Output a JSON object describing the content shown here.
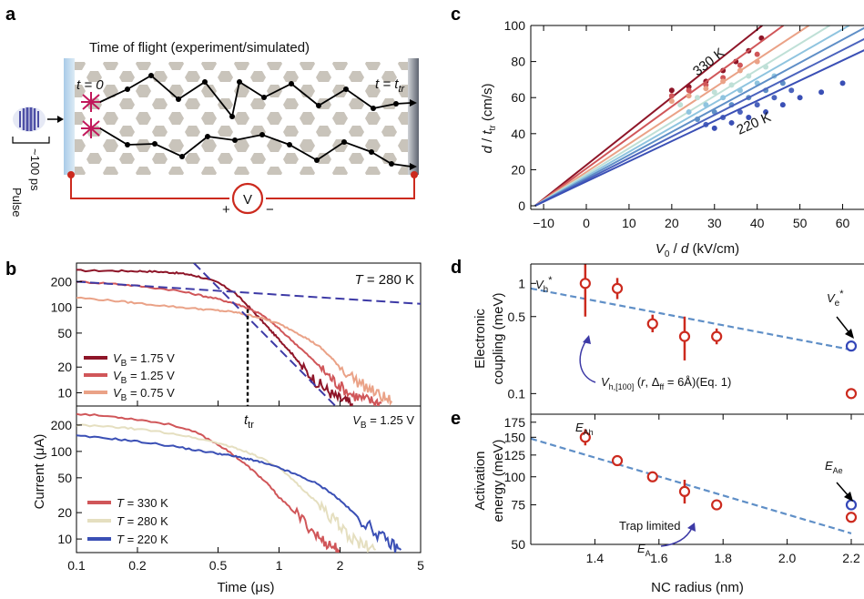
{
  "panels": {
    "a": "a",
    "b": "b",
    "c": "c",
    "d": "d",
    "e": "e"
  },
  "panel_a": {
    "title": "Time of flight (experiment/simulated)",
    "t0": "t = 0",
    "t_tr_t": "t = t",
    "t_tr_sub": "tr",
    "pulse_width": "~100 ps",
    "pulse": "Pulse",
    "voltage": "V",
    "plus": "+",
    "minus": "−"
  },
  "colors": {
    "dark_red": "#8e1528",
    "red": "#d05659",
    "salmon": "#eaa287",
    "cream": "#e5dfc0",
    "blue": "#3a4fb5",
    "dashed_blue": "#3d3aa6",
    "dashed_lightblue": "#5f8fc7",
    "marker_red": "#cc2a1e",
    "marker_blue": "#3447b8"
  },
  "chart_data": [
    {
      "id": "b_top",
      "type": "line",
      "xscale": "log",
      "yscale": "log",
      "xlim": [
        0.1,
        5
      ],
      "ylim": [
        7,
        330
      ],
      "yticks": [
        "10",
        "20",
        "50",
        "100",
        "200"
      ],
      "annotation": "T = 280 K",
      "annotation_italic": "T",
      "annotation_rest": " = 280 K",
      "ttr_label": "t",
      "ttr_sub": "tr",
      "ttr_x": 0.7,
      "series": [
        {
          "name": "VB = 1.75 V",
          "label_v": "V",
          "label_sub": "B",
          "label_rest": " = 1.75 V",
          "color": "#8e1528",
          "x": [
            0.1,
            0.15,
            0.2,
            0.25,
            0.3,
            0.35,
            0.4,
            0.5,
            0.6,
            0.7,
            0.8,
            0.9,
            1.0,
            1.1,
            1.2,
            1.3,
            1.5,
            1.7,
            1.9,
            2.1,
            2.3
          ],
          "y": [
            270,
            268,
            266,
            262,
            255,
            245,
            230,
            195,
            150,
            105,
            75,
            55,
            42,
            33,
            26,
            20,
            14,
            11,
            9,
            8,
            7.5
          ]
        },
        {
          "name": "VB = 1.25 V",
          "label_v": "V",
          "label_sub": "B",
          "label_rest": " = 1.25 V",
          "color": "#d05659",
          "x": [
            0.1,
            0.15,
            0.2,
            0.3,
            0.4,
            0.5,
            0.6,
            0.7,
            0.8,
            0.9,
            1.0,
            1.2,
            1.4,
            1.6,
            1.8,
            2.0,
            2.3,
            2.6,
            2.9,
            3.2
          ],
          "y": [
            200,
            190,
            178,
            160,
            140,
            125,
            112,
            98,
            85,
            70,
            56,
            38,
            27,
            20,
            15,
            12,
            9.5,
            8.5,
            8,
            7.5
          ]
        },
        {
          "name": "VB = 0.75 V",
          "label_v": "V",
          "label_sub": "B",
          "label_rest": " = 0.75 V",
          "color": "#eaa287",
          "x": [
            0.1,
            0.15,
            0.2,
            0.3,
            0.4,
            0.5,
            0.6,
            0.7,
            0.8,
            1.0,
            1.2,
            1.4,
            1.6,
            1.8,
            2.0,
            2.4,
            2.8,
            3.2,
            3.6
          ],
          "y": [
            130,
            120,
            112,
            102,
            96,
            92,
            88,
            82,
            76,
            64,
            52,
            42,
            34,
            26,
            20,
            14,
            11,
            9,
            8
          ]
        }
      ],
      "guides": [
        {
          "x": [
            0.1,
            5
          ],
          "y": [
            200,
            110
          ],
          "color": "#3d3aa6"
        },
        {
          "x": [
            0.38,
            1.9
          ],
          "y": [
            330,
            7
          ],
          "color": "#3d3aa6"
        }
      ]
    },
    {
      "id": "b_bottom",
      "type": "line",
      "xscale": "log",
      "yscale": "log",
      "xlim": [
        0.1,
        5
      ],
      "ylim": [
        7,
        330
      ],
      "xticks": [
        "0.1",
        "0.2",
        "0.5",
        "1",
        "2",
        "5"
      ],
      "yticks": [
        "10",
        "20",
        "50",
        "100",
        "200"
      ],
      "xlabel": "Time (μs)",
      "ylabel": "Current (μA)",
      "annotation_v": "V",
      "annotation_sub": "B",
      "annotation_rest": " = 1.25 V",
      "series": [
        {
          "name": "T = 330 K",
          "label_t": "T",
          "label_rest": " = 330 K",
          "color": "#d05659",
          "x": [
            0.1,
            0.15,
            0.2,
            0.3,
            0.4,
            0.5,
            0.6,
            0.7,
            0.8,
            0.9,
            1.0,
            1.2,
            1.4,
            1.6,
            1.8,
            2.0
          ],
          "y": [
            270,
            250,
            232,
            200,
            160,
            120,
            90,
            68,
            52,
            40,
            30,
            20,
            14,
            10,
            8.5,
            7.5
          ]
        },
        {
          "name": "T = 280 K",
          "label_t": "T",
          "label_rest": " = 280 K",
          "color": "#e5dfc0",
          "x": [
            0.1,
            0.15,
            0.2,
            0.3,
            0.4,
            0.5,
            0.6,
            0.7,
            0.8,
            1.0,
            1.2,
            1.4,
            1.6,
            1.8,
            2.0,
            2.3,
            2.6,
            3.0
          ],
          "y": [
            200,
            190,
            180,
            160,
            140,
            125,
            110,
            98,
            86,
            64,
            45,
            32,
            24,
            18,
            14,
            10,
            8.5,
            7.5
          ]
        },
        {
          "name": "T = 220 K",
          "label_t": "T",
          "label_rest": " = 220 K",
          "color": "#3a4fb5",
          "x": [
            0.1,
            0.15,
            0.2,
            0.3,
            0.4,
            0.5,
            0.6,
            0.7,
            0.8,
            1.0,
            1.2,
            1.5,
            1.8,
            2.1,
            2.5,
            3.0,
            3.5,
            4.0
          ],
          "y": [
            150,
            140,
            130,
            115,
            102,
            95,
            88,
            82,
            76,
            65,
            55,
            44,
            34,
            25,
            17,
            12,
            9,
            7.5
          ]
        }
      ]
    },
    {
      "id": "c",
      "type": "scatter",
      "xlim": [
        -13,
        65
      ],
      "ylim": [
        -2,
        100
      ],
      "xticks": [
        "−10",
        "0",
        "10",
        "20",
        "30",
        "40",
        "50",
        "60"
      ],
      "yticks": [
        "0",
        "20",
        "40",
        "60",
        "80",
        "100"
      ],
      "xlabel_v": "V",
      "xlabel_sub": "0",
      "xlabel_rest": " / ",
      "xlabel_d": "d",
      "xlabel_unit": " (kV/cm)",
      "ylabel_d": "d",
      "ylabel_mid": " / ",
      "ylabel_t": "t",
      "ylabel_sub": "tr",
      "ylabel_unit": " (cm/s)",
      "label_hot": "330 K",
      "label_cold": "220 K",
      "series": [
        {
          "name": "330 K",
          "color": "#8e1528",
          "slope": 1.88,
          "points": [
            [
              20,
              64
            ],
            [
              24,
              66
            ],
            [
              28,
              69
            ],
            [
              32,
              75
            ],
            [
              35,
              80
            ],
            [
              38,
              86
            ],
            [
              41,
              93
            ]
          ]
        },
        {
          "name": "",
          "color": "#d05659",
          "slope": 1.72,
          "points": [
            [
              20,
              61
            ],
            [
              24,
              64
            ],
            [
              28,
              67
            ],
            [
              32,
              71
            ],
            [
              36,
              78
            ],
            [
              40,
              84
            ]
          ]
        },
        {
          "name": "",
          "color": "#eaa287",
          "slope": 1.56,
          "points": [
            [
              20,
              58
            ],
            [
              24,
              61
            ],
            [
              28,
              65
            ],
            [
              32,
              69
            ],
            [
              36,
              75
            ],
            [
              40,
              80
            ]
          ]
        },
        {
          "name": "",
          "color": "#bfe0d7",
          "slope": 1.45,
          "points": [
            [
              22,
              56
            ],
            [
              26,
              60
            ],
            [
              30,
              63
            ],
            [
              34,
              67
            ],
            [
              38,
              72
            ],
            [
              42,
              77
            ]
          ]
        },
        {
          "name": "",
          "color": "#8fc4df",
          "slope": 1.36,
          "points": [
            [
              24,
              52
            ],
            [
              28,
              56
            ],
            [
              32,
              60
            ],
            [
              36,
              64
            ],
            [
              40,
              68
            ],
            [
              44,
              72
            ]
          ]
        },
        {
          "name": "",
          "color": "#5f8fc7",
          "slope": 1.28,
          "points": [
            [
              26,
              48
            ],
            [
              30,
              52
            ],
            [
              34,
              56
            ],
            [
              38,
              60
            ],
            [
              42,
              64
            ],
            [
              46,
              68
            ]
          ]
        },
        {
          "name": "",
          "color": "#4b63bd",
          "slope": 1.2,
          "points": [
            [
              28,
              45
            ],
            [
              32,
              49
            ],
            [
              36,
              52
            ],
            [
              40,
              56
            ],
            [
              44,
              60
            ],
            [
              48,
              64
            ]
          ]
        },
        {
          "name": "220 K",
          "color": "#3a4fb5",
          "slope": 1.12,
          "points": [
            [
              30,
              43
            ],
            [
              34,
              46
            ],
            [
              38,
              49
            ],
            [
              42,
              52
            ],
            [
              46,
              56
            ],
            [
              50,
              60
            ],
            [
              55,
              63
            ],
            [
              60,
              68
            ]
          ]
        }
      ]
    },
    {
      "id": "d",
      "type": "scatter",
      "yscale": "log",
      "xlim": [
        1.2,
        2.2
      ],
      "ylim": [
        0.065,
        1.5
      ],
      "yticks": [
        "0.1",
        "0.5",
        "1"
      ],
      "ylabel_line1": "Electronic",
      "ylabel_line2": "coupling (meV)",
      "vh_label": "V",
      "vh_sub": "h",
      "vh_star": "*",
      "ve_label": "V",
      "ve_sub": "e",
      "ve_star": "*",
      "fit_label_v": "V",
      "fit_label_sub": "h,[100]",
      "fit_label_open": " (",
      "fit_label_r": "r",
      "fit_label_mid": ", Δ",
      "fit_label_ff": "ff",
      "fit_label_eq": " = 6Å)(Eq. 1)",
      "points": [
        {
          "x": 1.37,
          "y": 1.0,
          "err": [
            0.5,
            1.7
          ]
        },
        {
          "x": 1.47,
          "y": 0.9,
          "err": [
            0.72,
            1.12
          ]
        },
        {
          "x": 1.58,
          "y": 0.43,
          "err": [
            0.36,
            0.52
          ]
        },
        {
          "x": 1.68,
          "y": 0.33,
          "err": [
            0.2,
            0.5
          ]
        },
        {
          "x": 1.78,
          "y": 0.33,
          "err": [
            0.28,
            0.39
          ]
        },
        {
          "x": 2.2,
          "y": 0.1,
          "err": null
        }
      ],
      "electron_point": {
        "x": 2.2,
        "y": 0.27
      },
      "fit": {
        "x": [
          1.2,
          2.2
        ],
        "y": [
          0.9,
          0.25
        ]
      }
    },
    {
      "id": "e",
      "type": "scatter",
      "yscale": "log",
      "xlim": [
        1.2,
        2.2
      ],
      "ylim": [
        50,
        190
      ],
      "xticks": [
        "1.4",
        "1.6",
        "1.8",
        "2.0",
        "2.2"
      ],
      "yticks": [
        "50",
        "75",
        "100",
        "125",
        "150",
        "175"
      ],
      "xlabel": "NC radius (nm)",
      "ylabel_line1": "Activation",
      "ylabel_line2": "energy (meV)",
      "eah_label": "E",
      "eah_sub": "Ah",
      "eae_label": "E",
      "eae_sub": "Ae",
      "ea_label": "E",
      "ea_sub": "A",
      "trap_label": "Trap limited",
      "points": [
        {
          "x": 1.37,
          "y": 150,
          "err": [
            138,
            163
          ]
        },
        {
          "x": 1.47,
          "y": 118,
          "err": [
            113,
            123
          ]
        },
        {
          "x": 1.58,
          "y": 100,
          "err": [
            95,
            105
          ]
        },
        {
          "x": 1.68,
          "y": 86,
          "err": [
            76,
            97
          ]
        },
        {
          "x": 1.78,
          "y": 75,
          "err": null
        },
        {
          "x": 2.2,
          "y": 66,
          "err": null
        }
      ],
      "electron_point": {
        "x": 2.2,
        "y": 75
      },
      "fit": {
        "x": [
          1.2,
          2.2
        ],
        "y": [
          148,
          56
        ]
      }
    }
  ]
}
